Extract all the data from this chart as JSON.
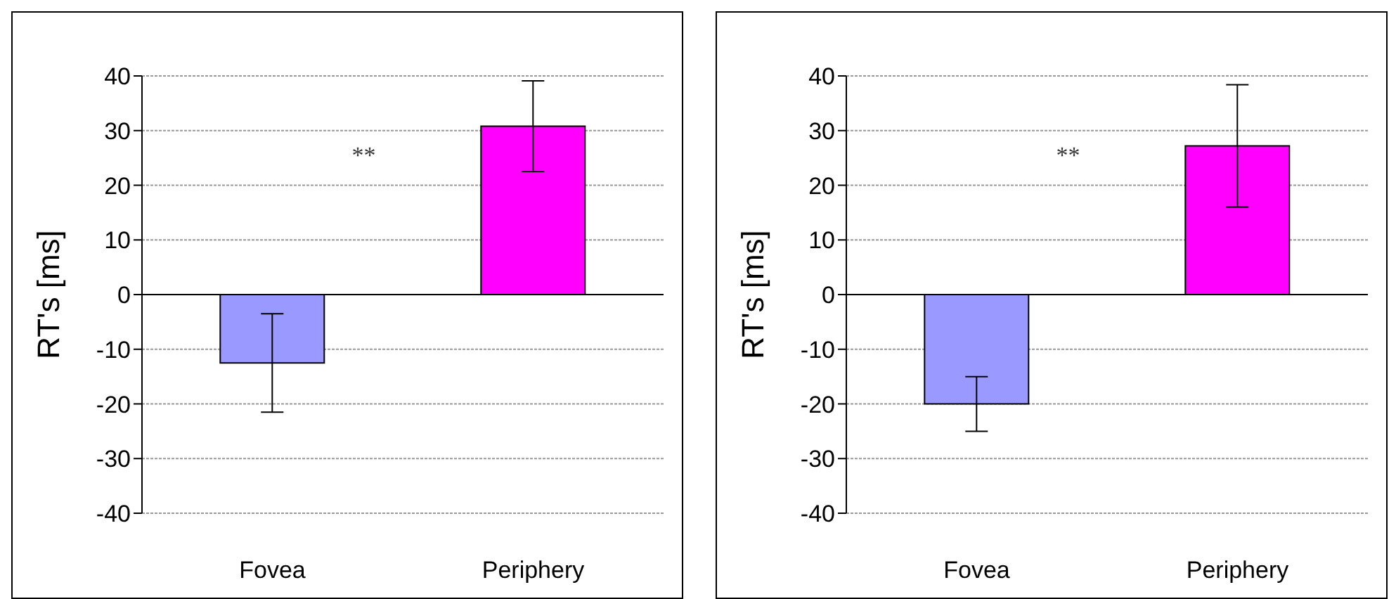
{
  "chart_data": [
    {
      "type": "bar",
      "categories": [
        "Fovea",
        "Periphery"
      ],
      "values": [
        -12.5,
        30.8
      ],
      "colors": [
        "#9999ff",
        "#ff00ff"
      ],
      "errors": [
        9,
        8.3
      ],
      "ylabel": "RT's [ms]",
      "ylim": [
        -40,
        40
      ],
      "yticks": [
        -40,
        -30,
        -20,
        -10,
        0,
        10,
        20,
        30,
        40
      ],
      "grid": "y",
      "annotations": [
        "**"
      ]
    },
    {
      "type": "bar",
      "categories": [
        "Fovea",
        "Periphery"
      ],
      "values": [
        -20,
        27.2
      ],
      "colors": [
        "#9999ff",
        "#ff00ff"
      ],
      "errors": [
        5,
        11.2
      ],
      "ylabel": "RT's [ms]",
      "ylim": [
        -40,
        40
      ],
      "yticks": [
        -40,
        -30,
        -20,
        -10,
        0,
        10,
        20,
        30,
        40
      ],
      "grid": "y",
      "annotations": [
        "**"
      ]
    }
  ]
}
